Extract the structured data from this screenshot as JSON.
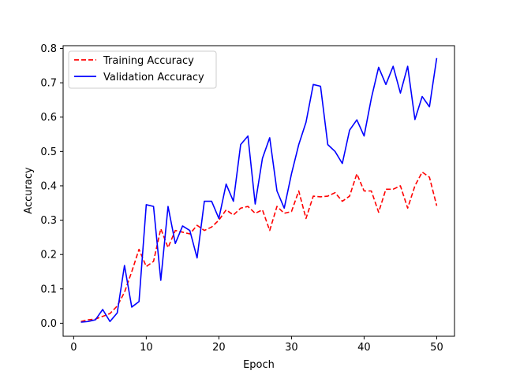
{
  "chart_data": {
    "type": "line",
    "title": "",
    "xlabel": "Epoch",
    "ylabel": "Accuracy",
    "xlim": [
      -1.45,
      52.45
    ],
    "ylim": [
      -0.038,
      0.808
    ],
    "xticks": [
      0,
      10,
      20,
      30,
      40,
      50
    ],
    "yticks": [
      0.0,
      0.1,
      0.2,
      0.3,
      0.4,
      0.5,
      0.6,
      0.7,
      0.8
    ],
    "ytick_labels": [
      "0.0",
      "0.1",
      "0.2",
      "0.3",
      "0.4",
      "0.5",
      "0.6",
      "0.7",
      "0.8"
    ],
    "grid": false,
    "legend_position": "upper-left",
    "x": [
      1,
      2,
      3,
      4,
      5,
      6,
      7,
      8,
      9,
      10,
      11,
      12,
      13,
      14,
      15,
      16,
      17,
      18,
      19,
      20,
      21,
      22,
      23,
      24,
      25,
      26,
      27,
      28,
      29,
      30,
      31,
      32,
      33,
      34,
      35,
      36,
      37,
      38,
      39,
      40,
      41,
      42,
      43,
      44,
      45,
      46,
      47,
      48,
      49,
      50
    ],
    "series": [
      {
        "name": "Training Accuracy",
        "color": "#ff0000",
        "linestyle": "dashed",
        "values": [
          0.005,
          0.01,
          0.012,
          0.02,
          0.028,
          0.05,
          0.09,
          0.15,
          0.215,
          0.165,
          0.18,
          0.275,
          0.22,
          0.27,
          0.265,
          0.26,
          0.285,
          0.27,
          0.28,
          0.3,
          0.33,
          0.315,
          0.335,
          0.34,
          0.32,
          0.33,
          0.27,
          0.34,
          0.32,
          0.325,
          0.385,
          0.305,
          0.37,
          0.368,
          0.37,
          0.38,
          0.355,
          0.37,
          0.435,
          0.385,
          0.385,
          0.323,
          0.39,
          0.39,
          0.4,
          0.335,
          0.4,
          0.44,
          0.425,
          0.342
        ]
      },
      {
        "name": "Validation Accuracy",
        "color": "#0000ff",
        "linestyle": "solid",
        "values": [
          0.003,
          0.005,
          0.01,
          0.04,
          0.005,
          0.03,
          0.168,
          0.047,
          0.063,
          0.345,
          0.34,
          0.125,
          0.34,
          0.232,
          0.283,
          0.27,
          0.19,
          0.355,
          0.355,
          0.305,
          0.405,
          0.355,
          0.52,
          0.545,
          0.347,
          0.48,
          0.54,
          0.385,
          0.335,
          0.435,
          0.52,
          0.585,
          0.695,
          0.69,
          0.52,
          0.5,
          0.465,
          0.562,
          0.592,
          0.545,
          0.655,
          0.745,
          0.695,
          0.748,
          0.67,
          0.748,
          0.593,
          0.66,
          0.63,
          0.772
        ]
      }
    ]
  }
}
